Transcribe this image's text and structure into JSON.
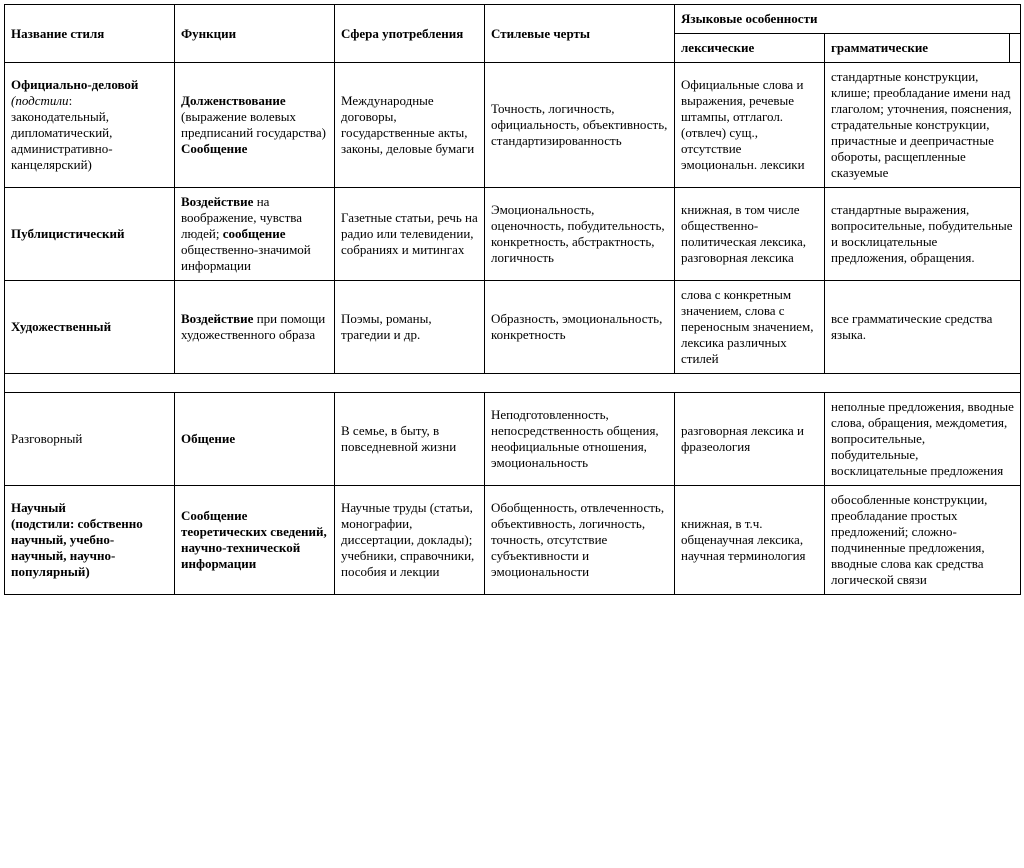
{
  "headers": {
    "c1": "Название стиля",
    "c2": "Функции",
    "c3": "Сфера употребления",
    "c4": "Стилевые черты",
    "lang": "Языковые особенности",
    "lex": "лексические",
    "gram": "грамматические"
  },
  "r1": {
    "name_b": "Официально-деловой",
    "name_i": "(подстили",
    "name_rest": ": законодательный, дипломатический, административно-канцелярский)",
    "func_b1": "Долженствование",
    "func_p1": " (выражение волевых предписаний государства) ",
    "func_b2": "Сообщение",
    "sphere": "Международные договоры, государственные акты, законы, деловые бумаги",
    "traits": "Точность, логичность, официальность, объективность, стандартизированность",
    "lex": "Официальные слова и выражения, речевые штампы, отглагол.(отвлеч) сущ., отсутствие эмоциональн. лексики",
    "gram": "стандартные конструкции, клише; преобладание имени над глаголом; уточнения, пояснения, страдательные конструкции, причастные и деепричастные обороты, расщепленные сказуемые"
  },
  "r2": {
    "name_b": "Публицистический",
    "func_b1": "Воздействие",
    "func_p1": " на воображение, чувства людей; ",
    "func_b2": "сообщение",
    "func_p2": " общественно-значимой информации",
    "sphere": "Газетные статьи, речь на радио или телевидении, собраниях и митингах",
    "traits": "Эмоциональность, оценочность, побудительность, конкретность, абстрактность, логичность",
    "lex": "книжная, в том числе общественно-политическая лексика, разговорная лексика",
    "gram": "стандартные выражения, вопросительные, побудительные и восклицательные предложения, обращения."
  },
  "r3": {
    "name_b": "Художественный",
    "func_b1": "Воздействие",
    "func_p1": " при помощи художественного образа",
    "sphere": "Поэмы, романы, трагедии и др.",
    "traits": "Образность, эмоциональность, конкретность",
    "lex": "слова с конкретным значением, слова с переносным значением, лексика различных стилей",
    "gram": "все грамматические средства языка."
  },
  "r4": {
    "name_plain": "Разговорный",
    "func_b1": "Общение",
    "sphere": "В семье, в быту, в повседневной жизни",
    "traits": "Неподготовленность, непосредственность общения, неофициальные отношения, эмоциональность",
    "lex": "разговорная лексика и фразеология",
    "gram": "неполные предложения, вводные слова, обращения, междометия, вопросительные, побудительные, восклицательные предложения"
  },
  "r5": {
    "name_b1": "Научный",
    "name_b2": "(подстили: собственно научный, учебно-научный, научно-популярный)",
    "func_b1": "Сообщение теоретических сведений, научно-технической информации",
    "sphere": "Научные труды (статьи, монографии, диссертации, доклады); учебники, справочники, пособия и лекции",
    "traits": "Обобщенность, отвлеченность, объективность, логичность, точность, отсутствие субъективности и эмоциональности",
    "lex": "книжная, в т.ч. общенаучная лексика, научная терминология",
    "gram": "обособленные конструкции, преобладание простых предложений; сложно-подчиненные предложения, вводные слова как средства логической связи"
  }
}
